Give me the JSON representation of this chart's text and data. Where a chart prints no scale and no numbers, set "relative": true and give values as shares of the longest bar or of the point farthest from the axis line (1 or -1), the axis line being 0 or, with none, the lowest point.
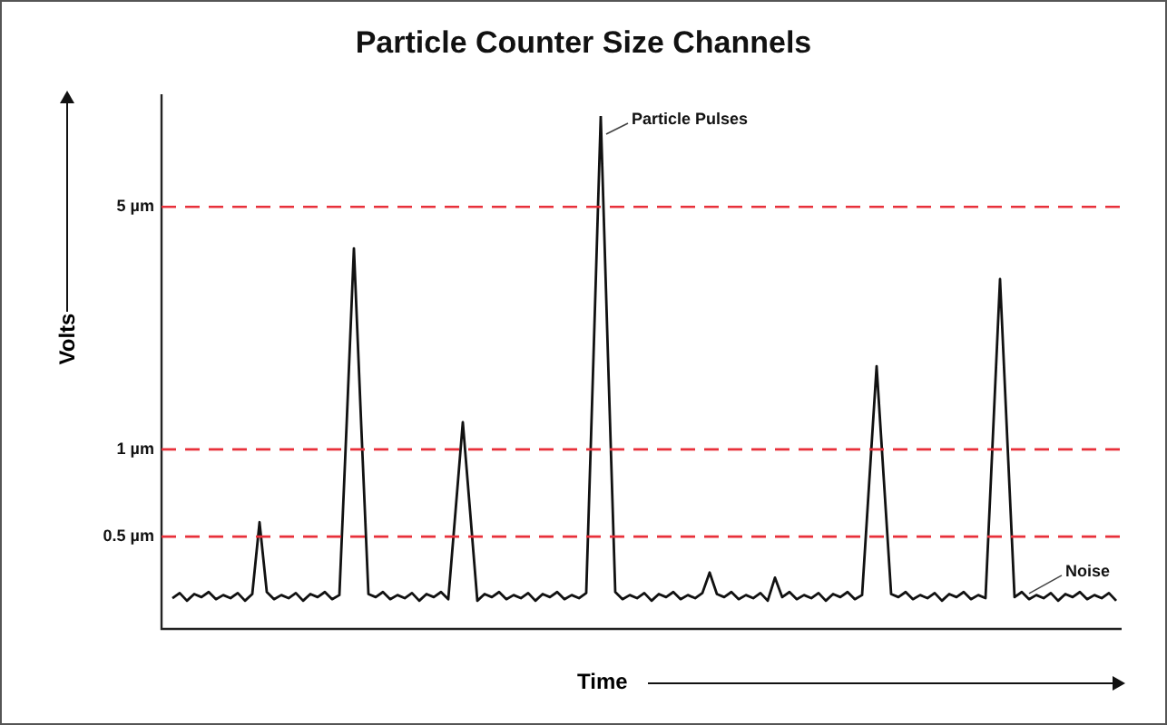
{
  "chart_data": {
    "type": "line",
    "title": "Particle Counter Size Channels",
    "xlabel": "Time",
    "ylabel": "Volts",
    "relative": true,
    "categories": [
      null,
      null,
      null,
      null,
      null,
      null,
      null,
      null,
      null,
      null,
      null,
      null,
      null,
      null,
      null,
      null,
      null,
      null,
      null,
      null,
      null,
      null,
      null,
      null,
      null,
      null,
      null,
      null,
      null,
      null,
      null,
      null,
      null,
      null,
      null,
      null,
      null,
      null,
      null,
      null,
      null,
      null,
      null,
      null,
      null,
      null,
      null,
      null,
      null,
      null,
      null,
      null,
      null,
      null,
      null,
      null,
      null,
      null,
      null,
      null,
      null,
      null,
      null,
      null,
      null,
      null,
      null,
      null,
      null,
      null,
      null,
      null,
      null,
      null,
      null,
      null,
      null,
      null,
      null,
      null,
      null,
      null,
      null,
      null,
      null,
      null,
      null,
      null,
      null,
      null,
      null,
      null,
      null,
      null,
      null,
      null,
      null,
      null,
      null,
      null,
      null,
      null,
      null,
      null,
      null,
      null,
      null,
      null,
      null,
      null,
      null,
      null,
      null,
      null,
      null,
      null,
      null,
      null,
      null,
      null,
      null,
      null,
      null,
      null,
      null,
      null,
      null,
      null,
      null,
      null,
      null
    ],
    "color": "#111111",
    "values": [
      0.06,
      0.07,
      0.055,
      0.068,
      0.062,
      0.072,
      0.058,
      0.066,
      0.06,
      0.07,
      0.055,
      0.068,
      0.208,
      0.072,
      0.058,
      0.066,
      0.06,
      0.07,
      0.055,
      0.068,
      0.062,
      0.072,
      0.058,
      0.066,
      0.4,
      0.742,
      0.4,
      0.068,
      0.062,
      0.072,
      0.058,
      0.066,
      0.06,
      0.07,
      0.055,
      0.068,
      0.062,
      0.072,
      0.058,
      0.23,
      0.403,
      0.23,
      0.055,
      0.068,
      0.062,
      0.072,
      0.058,
      0.066,
      0.06,
      0.07,
      0.055,
      0.068,
      0.062,
      0.072,
      0.058,
      0.066,
      0.06,
      0.07,
      0.53,
      1,
      0.53,
      0.072,
      0.058,
      0.066,
      0.06,
      0.07,
      0.055,
      0.068,
      0.062,
      0.072,
      0.058,
      0.066,
      0.06,
      0.07,
      0.11,
      0.068,
      0.062,
      0.072,
      0.058,
      0.066,
      0.06,
      0.07,
      0.055,
      0.1,
      0.062,
      0.072,
      0.058,
      0.066,
      0.06,
      0.07,
      0.055,
      0.068,
      0.062,
      0.072,
      0.058,
      0.066,
      0.29,
      0.512,
      0.29,
      0.068,
      0.062,
      0.072,
      0.058,
      0.066,
      0.06,
      0.07,
      0.055,
      0.068,
      0.062,
      0.072,
      0.058,
      0.066,
      0.06,
      0.37,
      0.682,
      0.37,
      0.062,
      0.072,
      0.058,
      0.066,
      0.06,
      0.07,
      0.055,
      0.068,
      0.062,
      0.072,
      0.058,
      0.066,
      0.06,
      0.07,
      0.055
    ],
    "line_style": "solid",
    "ref_lines": [
      {
        "axis": "y",
        "value": 0.823,
        "label": "5 µm",
        "color": "#e8303a",
        "line_style": "dashed"
      },
      {
        "axis": "y",
        "value": 0.35,
        "label": "1 µm",
        "color": "#e8303a",
        "line_style": "dashed"
      },
      {
        "axis": "y",
        "value": 0.18,
        "label": "0.5 µm",
        "color": "#e8303a",
        "line_style": "dashed"
      }
    ],
    "annotations": [
      "Particle Pulses",
      "Noise"
    ]
  }
}
